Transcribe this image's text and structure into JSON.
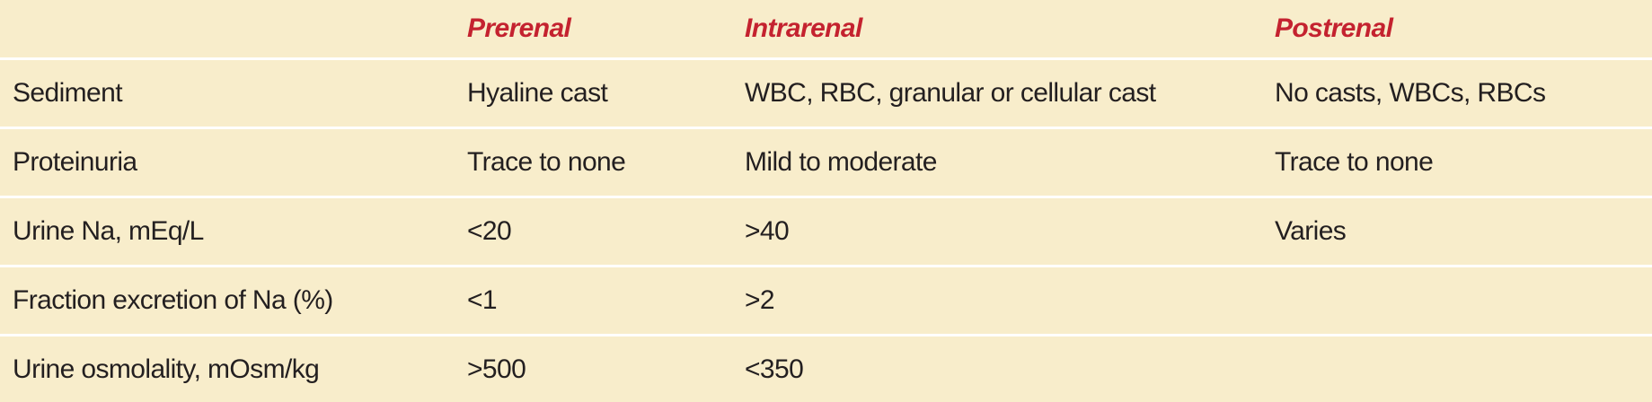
{
  "table": {
    "columns": [
      "Prerenal",
      "Intrarenal",
      "Postrenal"
    ],
    "rows": [
      [
        "Sediment",
        "Hyaline cast",
        "WBC, RBC, granular or cellular cast",
        "No casts, WBCs, RBCs"
      ],
      [
        "Proteinuria",
        "Trace to none",
        "Mild to moderate",
        "Trace to none"
      ],
      [
        "Urine Na, mEq/L",
        "<20",
        ">40",
        "Varies"
      ],
      [
        "Fraction excretion of Na (%)",
        "<1",
        ">2"
      ],
      [
        "Urine osmolality, mOsm/kg",
        ">500",
        "<350"
      ]
    ]
  }
}
